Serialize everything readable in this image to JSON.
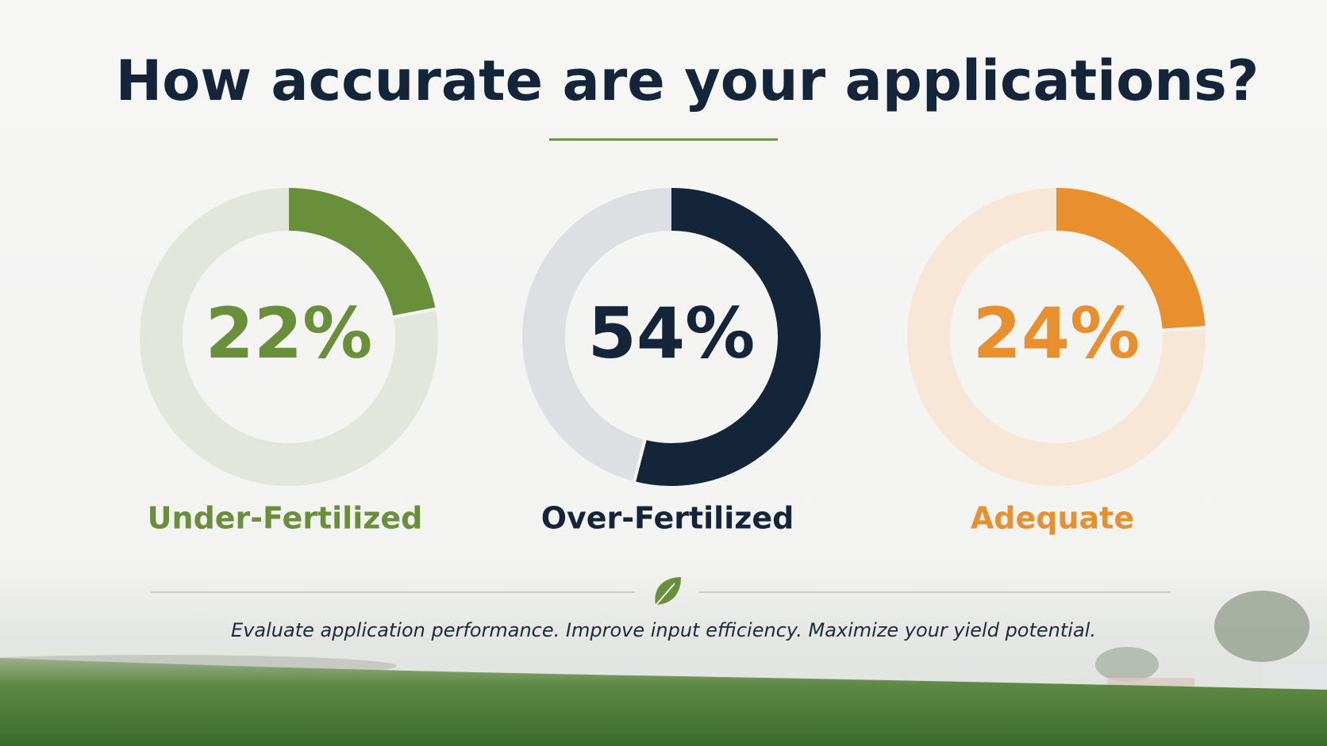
{
  "title": "How accurate are your applications?",
  "tagline": "Evaluate application performance. Improve input efficiency. Maximize your yield potential.",
  "chart_data": [
    {
      "type": "donut",
      "categories": [
        "Under-Fertilized"
      ],
      "values": [
        22
      ],
      "value_labels": [
        "22%"
      ],
      "color": "#6a8f3a",
      "track_color": "#e2e6dc"
    },
    {
      "type": "donut",
      "categories": [
        "Over-Fertilized"
      ],
      "values": [
        54
      ],
      "value_labels": [
        "54%"
      ],
      "color": "#14253a",
      "track_color": "#dddfe2"
    },
    {
      "type": "donut",
      "categories": [
        "Adequate"
      ],
      "values": [
        24
      ],
      "value_labels": [
        "24%"
      ],
      "color": "#e8902e",
      "track_color": "#f8e6d6"
    }
  ]
}
